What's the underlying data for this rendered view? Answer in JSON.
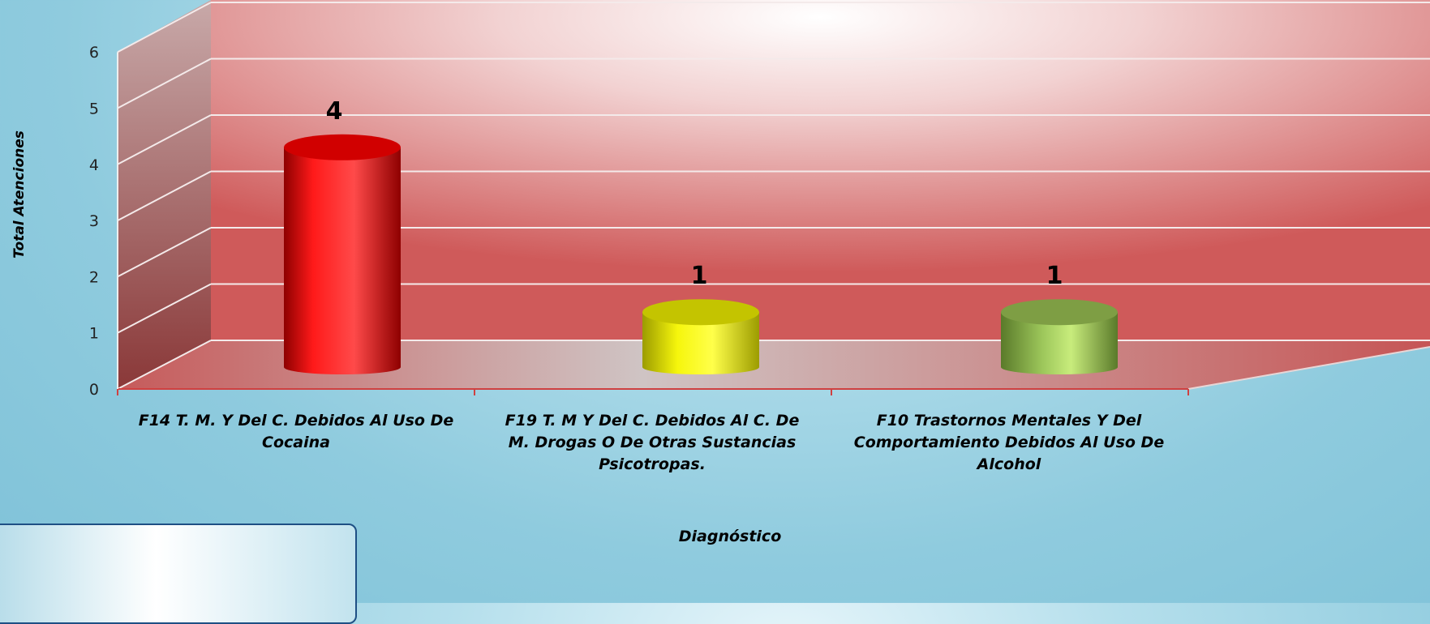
{
  "chart_data": {
    "type": "bar",
    "categories": [
      "F14 T. M. Y Del C. Debidos Al Uso De Cocaina",
      "F19 T. M Y Del C. Debidos Al C. De M. Drogas O De Otras Sustancias Psicotropas.",
      "F10 Trastornos Mentales Y Del Comportamiento Debidos Al Uso De Alcohol"
    ],
    "values": [
      4,
      1,
      1
    ],
    "data_labels": [
      "4",
      "1",
      "1"
    ],
    "bar_colors": [
      "#ff1a1a",
      "#f2f20a",
      "#9cc65a"
    ],
    "xlabel": "Diagnóstico",
    "ylabel": "Total Atenciones",
    "ylim": [
      0,
      6
    ],
    "yticks": [
      "0",
      "1",
      "2",
      "3",
      "4",
      "5",
      "6"
    ],
    "grid": true,
    "style": "3d-cylinder"
  }
}
